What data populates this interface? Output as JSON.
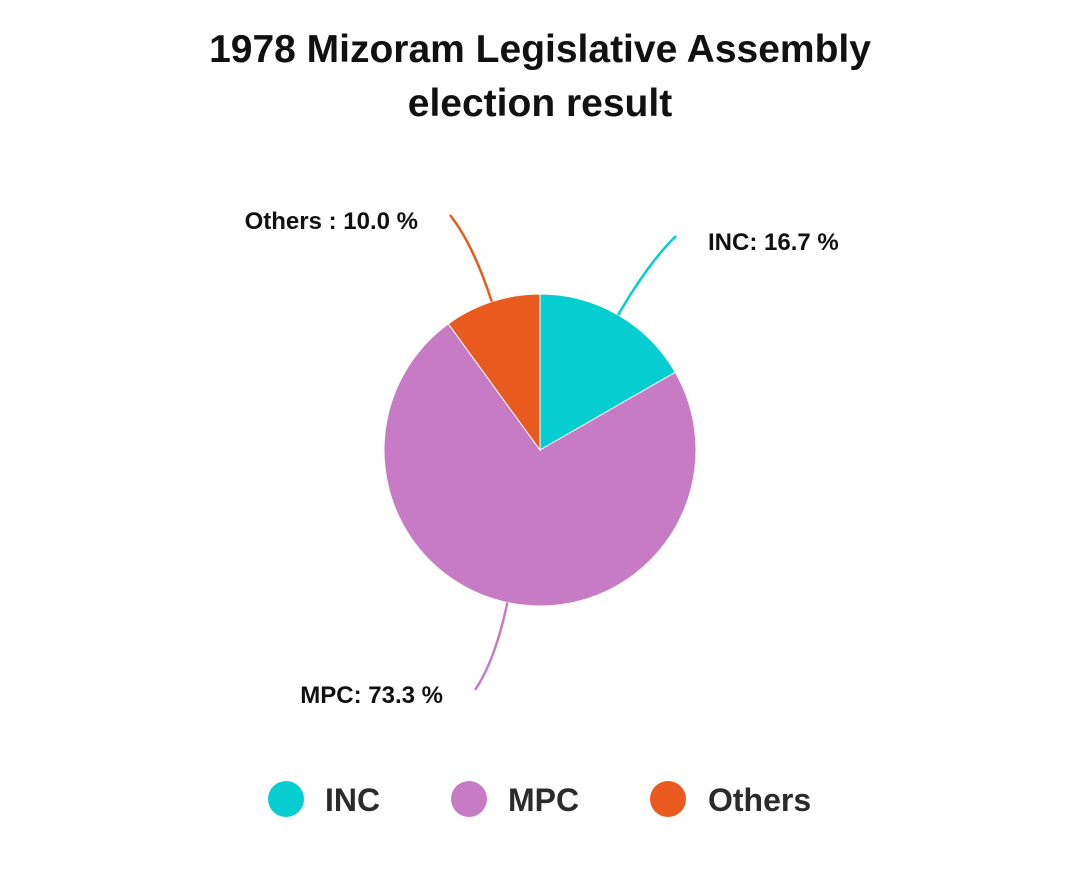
{
  "chart_data": {
    "type": "pie",
    "title_line1": "1978 Mizoram Legislative Assembly",
    "title_line2": "election result",
    "slices": [
      {
        "name": "INC",
        "value": 16.7,
        "label": "INC: 16.7 %",
        "color": "#06CDCF"
      },
      {
        "name": "MPC",
        "value": 73.3,
        "label": "MPC: 73.3 %",
        "color": "#C77BC5"
      },
      {
        "name": "Others",
        "value": 10.0,
        "label": "Others : 10.0 %",
        "color": "#E85A1D"
      }
    ],
    "legend": {
      "placement": "bottom",
      "items": [
        "INC",
        "MPC",
        "Others"
      ]
    }
  }
}
